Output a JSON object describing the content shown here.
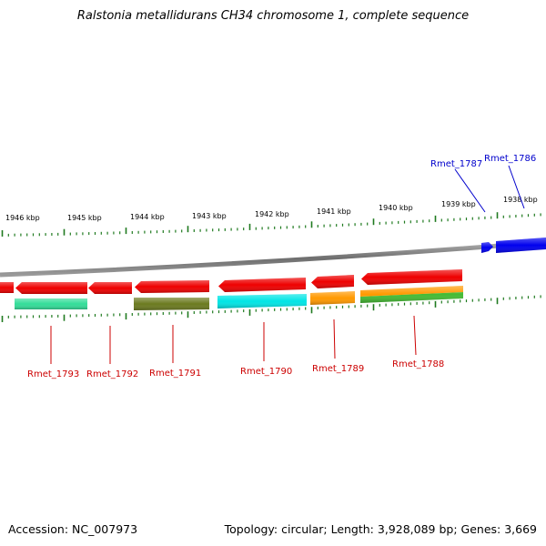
{
  "title": "Ralstonia metallidurans CH34 chromosome 1, complete sequence",
  "accession": "Accession: NC_007973",
  "stats": "Topology: circular; Length: 3,928,089 bp; Genes: 3,669",
  "colors": {
    "backbone": "#8a8a8a",
    "tick": "#1f7a1f",
    "forward_label": "#0000cc",
    "reverse_label": "#cc0000",
    "forward_gene": "#0000ee",
    "reverse_gene": "#ee0000",
    "cyan": "#00e5e5",
    "teal": "#33dd99",
    "olive": "#6b7a1f",
    "orange": "#ff9900",
    "green": "#44bb33"
  },
  "kbp_labels": [
    "1946 kbp",
    "1945 kbp",
    "1944 kbp",
    "1943 kbp",
    "1942 kbp",
    "1941 kbp",
    "1940 kbp",
    "1939 kbp",
    "1938 kbp"
  ],
  "forward_genes": [
    {
      "label": "Rmet_1787",
      "color": "#0000ee"
    },
    {
      "label": "Rmet_1786",
      "color": "#0000ee"
    }
  ],
  "reverse_genes": [
    {
      "label": "Rmet_1793",
      "color": "#ee0000",
      "cog_color": "#33dd99"
    },
    {
      "label": "Rmet_1792",
      "color": "#ee0000",
      "cog_color": null
    },
    {
      "label": "Rmet_1791",
      "color": "#ee0000",
      "cog_color": "#6b7a1f"
    },
    {
      "label": "Rmet_1790",
      "color": "#ee0000",
      "cog_color": "#00e5e5"
    },
    {
      "label": "Rmet_1789",
      "color": "#ee0000",
      "cog_color": "#ff9900"
    },
    {
      "label": "Rmet_1788",
      "color": "#ee0000",
      "cog_color": "#ff9900",
      "cog_color_2": "#44bb33"
    }
  ]
}
